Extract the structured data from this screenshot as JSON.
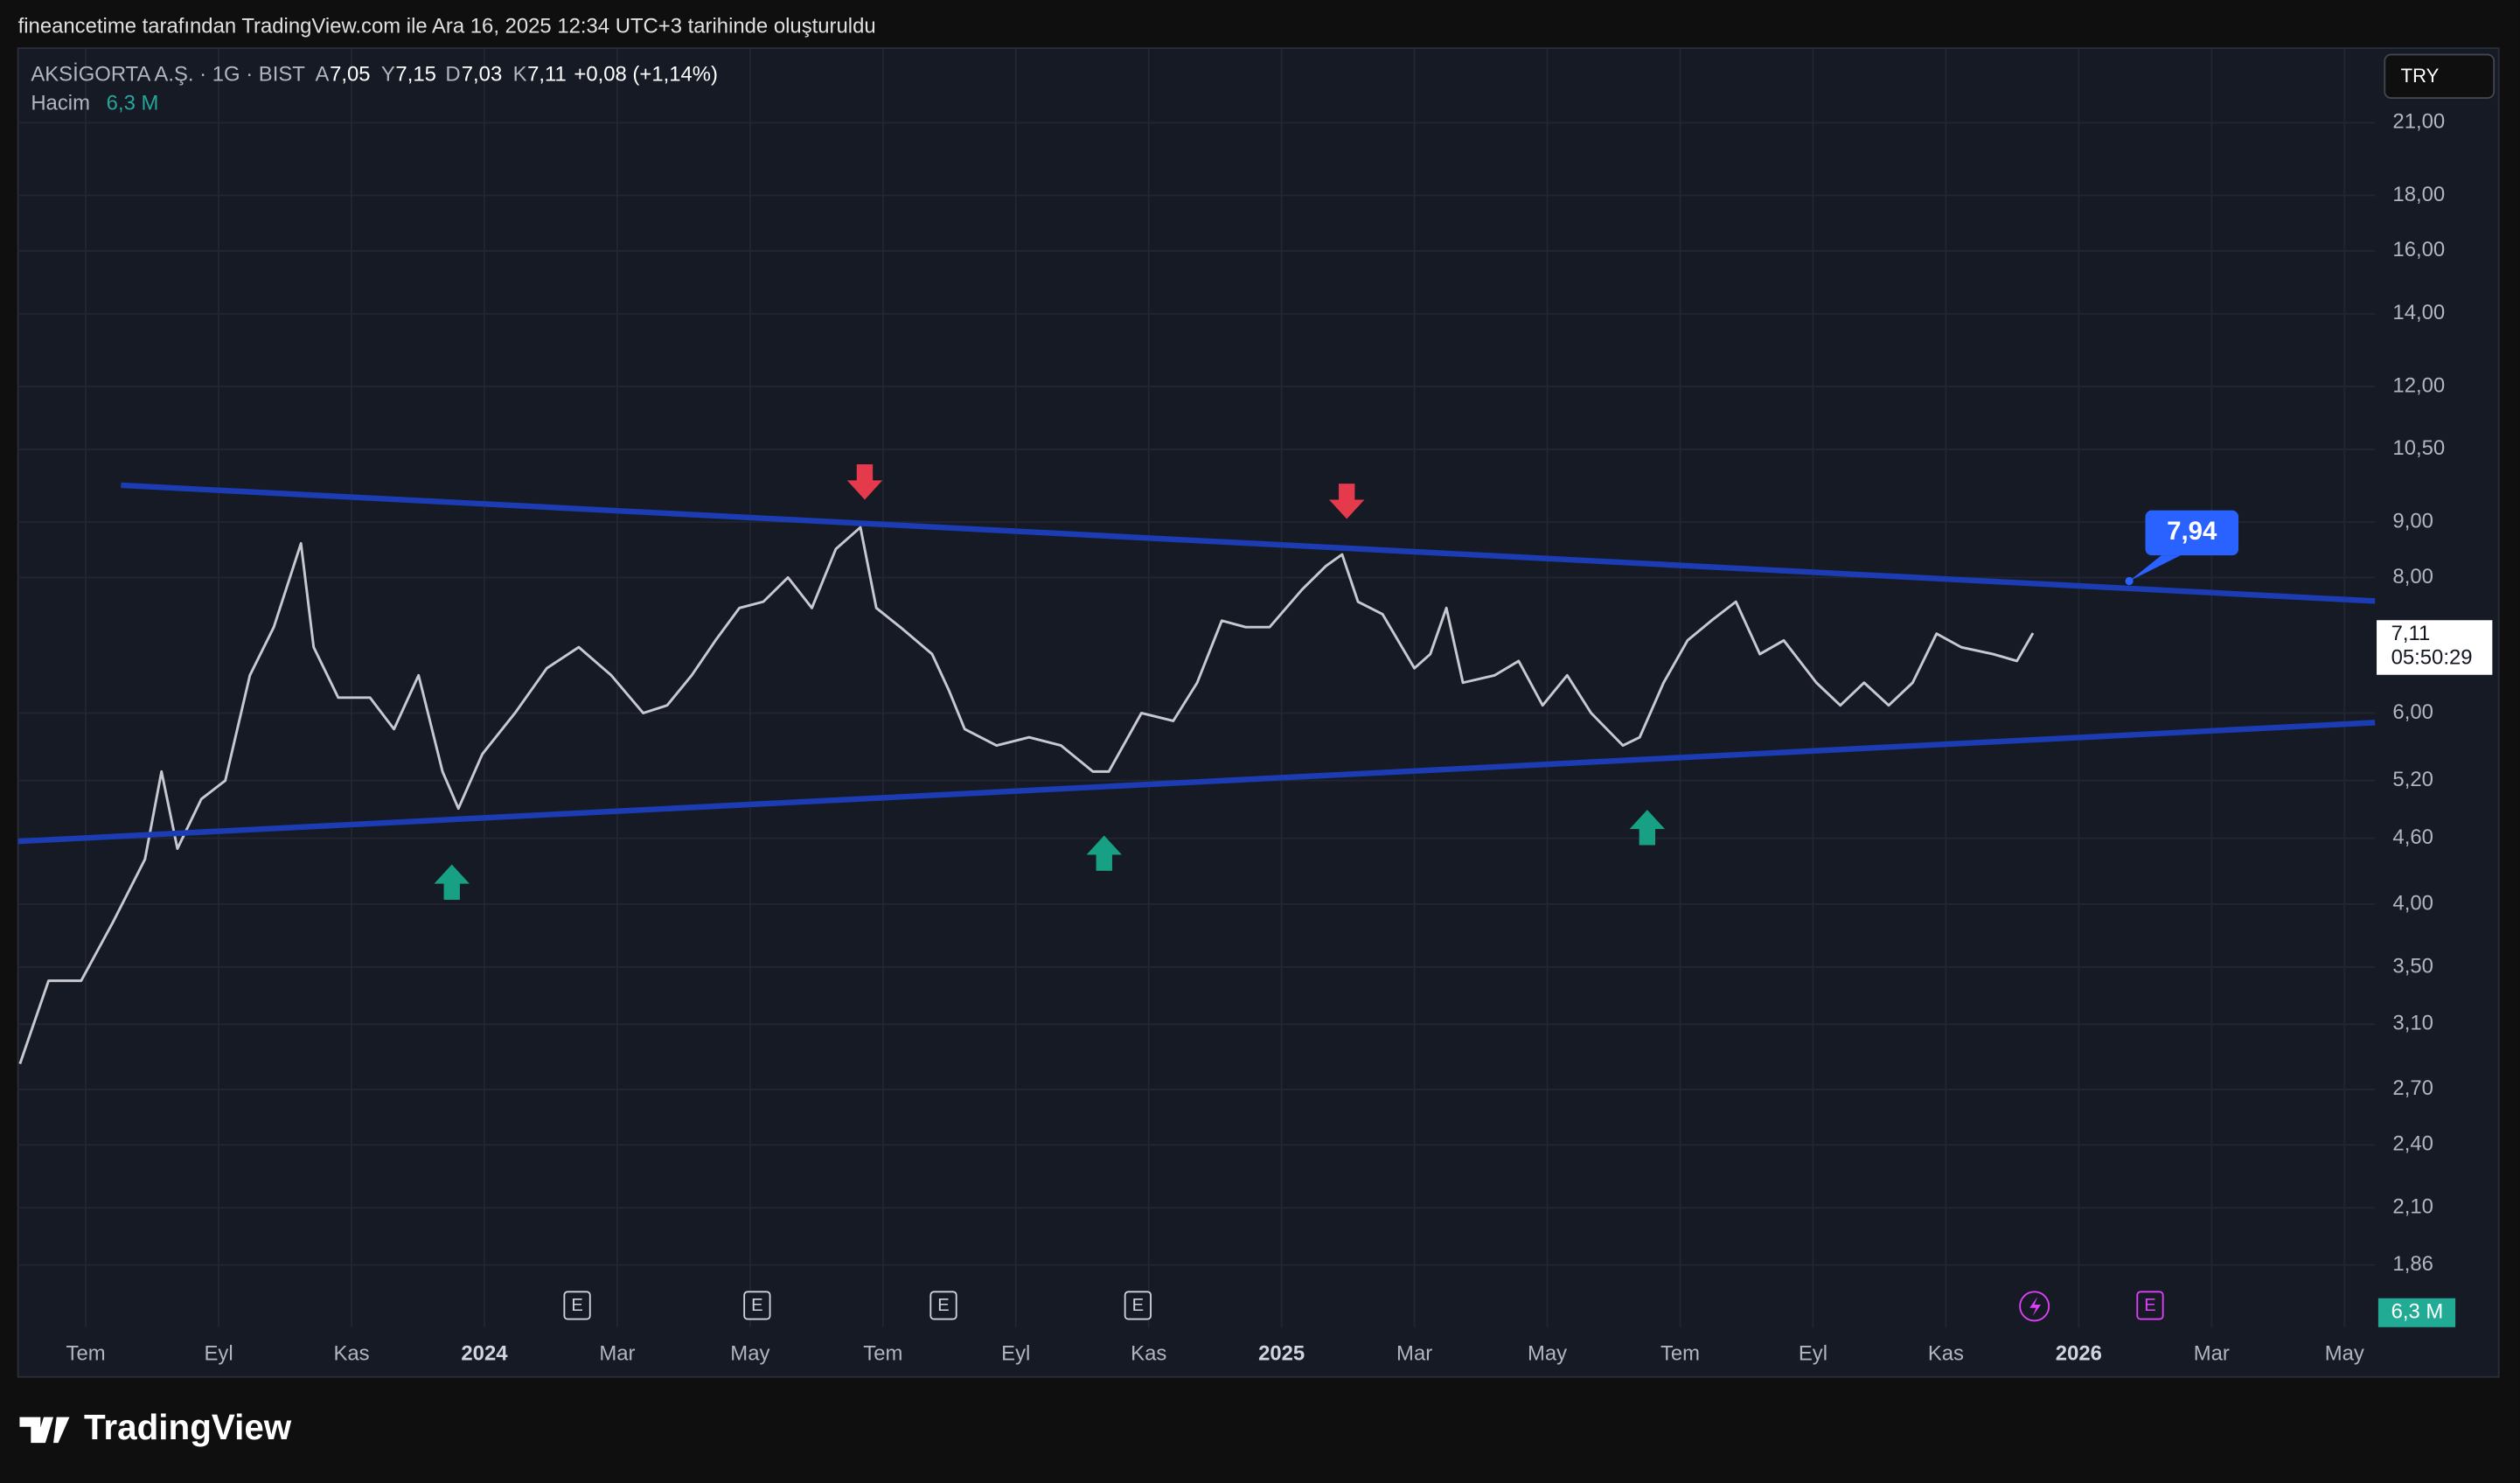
{
  "header": {
    "credit": "fineancetime tarafından TradingView.com ile Ara 16, 2025 12:34 UTC+3 tarihinde oluşturuldu",
    "symbol": "AKSİGORTA A.Ş. · 1G · BIST",
    "ohlc": [
      {
        "key": "A",
        "value": "7,05"
      },
      {
        "key": "Y",
        "value": "7,15"
      },
      {
        "key": "D",
        "value": "7,03"
      },
      {
        "key": "K",
        "value": "7,11"
      }
    ],
    "change": "+0,08 (+1,14%)",
    "volume_label": "Hacim",
    "volume_value": "6,3 M",
    "currency": "TRY",
    "last_price": "7,11",
    "countdown": "05:50:29",
    "volume_badge": "6,3 M",
    "events": [
      "E",
      "E",
      "E",
      "E",
      "E"
    ]
  },
  "footer": {
    "brand": "TradingView"
  },
  "chart_data": {
    "type": "line",
    "log_scale": true,
    "grid": true,
    "color": "#c8c9d0",
    "x": [
      -0.99,
      -0.56,
      -0.07,
      0.41,
      0.89,
      1.14,
      1.38,
      1.74,
      2.1,
      2.47,
      2.83,
      3.24,
      3.43,
      3.8,
      4.28,
      4.64,
      5.01,
      5.37,
      5.61,
      5.97,
      6.46,
      6.94,
      7.42,
      7.91,
      8.39,
      8.75,
      9.12,
      9.48,
      9.84,
      10.2,
      10.57,
      10.93,
      11.29,
      11.66,
      11.9,
      12.26,
      12.74,
      12.99,
      13.23,
      13.71,
      14.2,
      14.68,
      15.16,
      15.4,
      15.89,
      16.37,
      16.73,
      17.1,
      17.46,
      17.82,
      18.31,
      18.67,
      18.91,
      19.15,
      19.52,
      20.0,
      20.24,
      20.48,
      20.73,
      21.21,
      21.57,
      21.93,
      22.3,
      22.66,
      23.14,
      23.39,
      23.75,
      24.11,
      24.47,
      24.84,
      25.2,
      25.56,
      26.05,
      26.41,
      26.77,
      27.14,
      27.5,
      27.86,
      28.23,
      28.71,
      29.07,
      29.31
    ],
    "values": [
      2.85,
      3.4,
      3.4,
      3.85,
      4.4,
      5.3,
      4.5,
      5.0,
      5.2,
      6.5,
      7.2,
      8.6,
      6.9,
      6.2,
      6.2,
      5.8,
      6.5,
      5.3,
      4.9,
      5.5,
      6.0,
      6.6,
      6.9,
      6.5,
      6.0,
      6.1,
      6.5,
      7.0,
      7.5,
      7.6,
      8.0,
      7.5,
      8.5,
      8.9,
      7.5,
      7.2,
      6.8,
      6.3,
      5.8,
      5.6,
      5.7,
      5.6,
      5.3,
      5.3,
      6.0,
      5.9,
      6.4,
      7.3,
      7.2,
      7.2,
      7.8,
      8.2,
      8.4,
      7.6,
      7.4,
      6.6,
      6.8,
      7.5,
      6.4,
      6.5,
      6.7,
      6.1,
      6.5,
      6.0,
      5.6,
      5.7,
      6.4,
      7.0,
      7.3,
      7.6,
      6.8,
      7.0,
      6.4,
      6.1,
      6.4,
      6.1,
      6.4,
      7.1,
      6.9,
      6.8,
      6.7,
      7.11
    ],
    "xlim": [
      -1.02,
      34.46
    ],
    "xticks": [
      {
        "value": 0,
        "label": "Tem"
      },
      {
        "value": 2,
        "label": "Eyl"
      },
      {
        "value": 4,
        "label": "Kas"
      },
      {
        "value": 6,
        "label": "2024"
      },
      {
        "value": 8,
        "label": "Mar"
      },
      {
        "value": 10,
        "label": "May"
      },
      {
        "value": 12,
        "label": "Tem"
      },
      {
        "value": 14,
        "label": "Eyl"
      },
      {
        "value": 16,
        "label": "Kas"
      },
      {
        "value": 18,
        "label": "2025"
      },
      {
        "value": 20,
        "label": "Mar"
      },
      {
        "value": 22,
        "label": "May"
      },
      {
        "value": 24,
        "label": "Tem"
      },
      {
        "value": 26,
        "label": "Eyl"
      },
      {
        "value": 28,
        "label": "Kas"
      },
      {
        "value": 30,
        "label": "2026"
      },
      {
        "value": 32,
        "label": "Mar"
      },
      {
        "value": 34,
        "label": "May"
      }
    ],
    "ylim": [
      1.63,
      24.6
    ],
    "yticks": [
      {
        "value": 21,
        "label": "21,00"
      },
      {
        "value": 18,
        "label": "18,00"
      },
      {
        "value": 16,
        "label": "16,00"
      },
      {
        "value": 14,
        "label": "14,00"
      },
      {
        "value": 12,
        "label": "12,00"
      },
      {
        "value": 10.5,
        "label": "10,50"
      },
      {
        "value": 9,
        "label": "9,00"
      },
      {
        "value": 8,
        "label": "8,00"
      },
      {
        "value": 6,
        "label": "6,00"
      },
      {
        "value": 5.2,
        "label": "5,20"
      },
      {
        "value": 4.6,
        "label": "4,60"
      },
      {
        "value": 4,
        "label": "4,00"
      },
      {
        "value": 3.5,
        "label": "3,50"
      },
      {
        "value": 3.1,
        "label": "3,10"
      },
      {
        "value": 2.7,
        "label": "2,70"
      },
      {
        "value": 2.4,
        "label": "2,40"
      },
      {
        "value": 2.1,
        "label": "2,10"
      },
      {
        "value": 1.86,
        "label": "1,86"
      }
    ],
    "trendlines": [
      {
        "color": "#1c3cb4",
        "x": [
          -1.02,
          34.46
        ],
        "values": [
          4.57,
          5.88
        ]
      },
      {
        "color": "#1c3cb4",
        "x": [
          0.53,
          34.46
        ],
        "values": [
          9.73,
          7.61
        ]
      }
    ],
    "annotation": {
      "x": 30.76,
      "value": 7.94,
      "label": "7,94",
      "color": "#2962ff"
    }
  }
}
